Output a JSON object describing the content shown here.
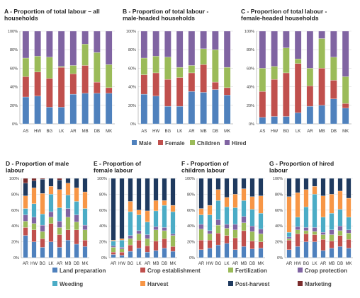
{
  "top_legend": [
    {
      "label": "Male",
      "color": "#4f81bd"
    },
    {
      "label": "Female",
      "color": "#c0504d"
    },
    {
      "label": "Children",
      "color": "#9bbb59"
    },
    {
      "label": "Hired",
      "color": "#8064a2"
    }
  ],
  "bottom_legend": [
    {
      "label": "Land preparation",
      "color": "#4f81bd"
    },
    {
      "label": "Crop establishment",
      "color": "#c0504d"
    },
    {
      "label": "Fertilization",
      "color": "#9bbb59"
    },
    {
      "label": "Crop protection",
      "color": "#8064a2"
    },
    {
      "label": "Weeding",
      "color": "#4bacc6"
    },
    {
      "label": "Harvest",
      "color": "#f79646"
    },
    {
      "label": "Post-harvest",
      "color": "#1f3a5f"
    },
    {
      "label": "Marketing",
      "color": "#7b2c2c"
    }
  ],
  "chart_data": [
    {
      "id": "A",
      "type": "bar",
      "stacked": true,
      "title_lines": [
        "A - Proportion of total labour – all",
        "households"
      ],
      "categories": [
        "AS",
        "HW",
        "BG",
        "LK",
        "AR",
        "MB",
        "DB",
        "MK"
      ],
      "ylim": [
        0,
        100
      ],
      "ytick_suffix": "%",
      "series": [
        {
          "name": "Male",
          "color": "#4f81bd",
          "values": [
            29,
            30,
            18,
            18,
            32,
            33,
            33,
            33
          ]
        },
        {
          "name": "Female",
          "color": "#c0504d",
          "values": [
            22,
            26,
            31,
            43,
            22,
            30,
            12,
            6
          ]
        },
        {
          "name": "Children",
          "color": "#9bbb59",
          "values": [
            20,
            17,
            23,
            1,
            9,
            23,
            32,
            25
          ]
        },
        {
          "name": "Hired",
          "color": "#8064a2",
          "values": [
            29,
            27,
            28,
            38,
            37,
            14,
            23,
            36
          ]
        }
      ]
    },
    {
      "id": "B",
      "type": "bar",
      "stacked": true,
      "title_lines": [
        "B - Proportion of total labour -",
        "male-headed households"
      ],
      "categories": [
        "AS",
        "HW",
        "BG",
        "LK",
        "AR",
        "MB",
        "DB",
        "MK"
      ],
      "ylim": [
        0,
        100
      ],
      "ytick_suffix": "%",
      "series": [
        {
          "name": "Male",
          "color": "#4f81bd",
          "values": [
            32,
            30,
            19,
            19,
            35,
            34,
            37,
            31
          ]
        },
        {
          "name": "Female",
          "color": "#c0504d",
          "values": [
            21,
            25,
            29,
            31,
            20,
            30,
            8,
            8
          ]
        },
        {
          "name": "Children",
          "color": "#9bbb59",
          "values": [
            18,
            18,
            24,
            11,
            8,
            17,
            35,
            22
          ]
        },
        {
          "name": "Hired",
          "color": "#8064a2",
          "values": [
            29,
            27,
            28,
            39,
            37,
            19,
            20,
            39
          ]
        }
      ]
    },
    {
      "id": "C",
      "type": "bar",
      "stacked": true,
      "title_lines": [
        "C - Proportion of total labour -",
        "female-headed households"
      ],
      "categories": [
        "AS",
        "HW",
        "BG",
        "LK",
        "AR",
        "MB",
        "DB",
        "MK"
      ],
      "ylim": [
        0,
        100
      ],
      "ytick_suffix": "%",
      "series": [
        {
          "name": "Male",
          "color": "#4f81bd",
          "values": [
            7,
            8,
            8,
            12,
            19,
            20,
            27,
            17
          ]
        },
        {
          "name": "Female",
          "color": "#c0504d",
          "values": [
            28,
            40,
            47,
            53,
            22,
            40,
            20,
            5
          ]
        },
        {
          "name": "Children",
          "color": "#9bbb59",
          "values": [
            25,
            14,
            27,
            5,
            19,
            32,
            25,
            29
          ]
        },
        {
          "name": "Hired",
          "color": "#8064a2",
          "values": [
            40,
            38,
            18,
            30,
            40,
            8,
            28,
            49
          ]
        }
      ]
    },
    {
      "id": "D",
      "type": "bar",
      "stacked": true,
      "title_lines": [
        "D - Proportion of male",
        "labour"
      ],
      "categories": [
        "AR",
        "HW",
        "BG",
        "LK",
        "AR",
        "MB",
        "DB",
        "MK"
      ],
      "ylim": [
        0,
        100
      ],
      "ytick_suffix": "%",
      "series": [
        {
          "name": "Land preparation",
          "color": "#4f81bd",
          "values": [
            28,
            20,
            13,
            20,
            13,
            22,
            17,
            14
          ]
        },
        {
          "name": "Crop establishment",
          "color": "#c0504d",
          "values": [
            10,
            15,
            11,
            23,
            16,
            13,
            18,
            8
          ]
        },
        {
          "name": "Fertilization",
          "color": "#9bbb59",
          "values": [
            8,
            8,
            9,
            8,
            9,
            16,
            10,
            13
          ]
        },
        {
          "name": "Crop protection",
          "color": "#8064a2",
          "values": [
            8,
            8,
            8,
            7,
            8,
            11,
            9,
            6
          ]
        },
        {
          "name": "Weeding",
          "color": "#4bacc6",
          "values": [
            8,
            17,
            14,
            22,
            17,
            17,
            17,
            21
          ]
        },
        {
          "name": "Harvest",
          "color": "#f79646",
          "values": [
            16,
            20,
            26,
            10,
            23,
            15,
            17,
            21
          ]
        },
        {
          "name": "Post-harvest",
          "color": "#1f3a5f",
          "values": [
            16,
            9,
            18,
            10,
            12,
            6,
            12,
            17
          ]
        },
        {
          "name": "Marketing",
          "color": "#7b2c2c",
          "values": [
            6,
            3,
            1,
            0,
            2,
            0,
            0,
            0
          ]
        }
      ]
    },
    {
      "id": "E",
      "type": "bar",
      "stacked": true,
      "title_lines": [
        "E - Proportion of",
        "female labour"
      ],
      "categories": [
        "AR",
        "HW",
        "BG",
        "LK",
        "AR",
        "MB",
        "DB",
        "MK"
      ],
      "ylim": [
        0,
        100
      ],
      "ytick_suffix": "%",
      "series": [
        {
          "name": "Land preparation",
          "color": "#4f81bd",
          "values": [
            4,
            3,
            8,
            12,
            7,
            9,
            12,
            8
          ]
        },
        {
          "name": "Crop establishment",
          "color": "#c0504d",
          "values": [
            3,
            4,
            8,
            10,
            8,
            12,
            12,
            6
          ]
        },
        {
          "name": "Fertilization",
          "color": "#9bbb59",
          "values": [
            6,
            4,
            8,
            8,
            9,
            14,
            10,
            14
          ]
        },
        {
          "name": "Crop protection",
          "color": "#8064a2",
          "values": [
            2,
            2,
            4,
            4,
            5,
            4,
            4,
            2
          ]
        },
        {
          "name": "Weeding",
          "color": "#4bacc6",
          "values": [
            6,
            9,
            30,
            20,
            16,
            20,
            28,
            28
          ]
        },
        {
          "name": "Harvest",
          "color": "#f79646",
          "values": [
            1,
            2,
            13,
            6,
            14,
            13,
            6,
            8
          ]
        },
        {
          "name": "Post-harvest",
          "color": "#1f3a5f",
          "values": [
            78,
            76,
            29,
            40,
            41,
            28,
            28,
            34
          ]
        },
        {
          "name": "Marketing",
          "color": "#7b2c2c",
          "values": [
            0,
            0,
            0,
            0,
            0,
            0,
            0,
            0
          ]
        }
      ]
    },
    {
      "id": "F",
      "type": "bar",
      "stacked": true,
      "title_lines": [
        "F - Proportion of",
        "children labour"
      ],
      "categories": [
        "AR",
        "HW",
        "BG",
        "LK",
        "AR",
        "MB",
        "DB",
        "MK"
      ],
      "ylim": [
        0,
        100
      ],
      "ytick_suffix": "%",
      "series": [
        {
          "name": "Land preparation",
          "color": "#4f81bd",
          "values": [
            10,
            12,
            16,
            18,
            10,
            14,
            11,
            12
          ]
        },
        {
          "name": "Crop establishment",
          "color": "#c0504d",
          "values": [
            12,
            10,
            15,
            10,
            15,
            20,
            10,
            8
          ]
        },
        {
          "name": "Fertilization",
          "color": "#9bbb59",
          "values": [
            14,
            8,
            10,
            9,
            10,
            10,
            12,
            10
          ]
        },
        {
          "name": "Crop protection",
          "color": "#8064a2",
          "values": [
            6,
            4,
            7,
            5,
            7,
            8,
            7,
            6
          ]
        },
        {
          "name": "Weeding",
          "color": "#4bacc6",
          "values": [
            12,
            20,
            24,
            22,
            21,
            20,
            21,
            20
          ]
        },
        {
          "name": "Harvest",
          "color": "#f79646",
          "values": [
            8,
            12,
            14,
            12,
            17,
            15,
            16,
            22
          ]
        },
        {
          "name": "Post-harvest",
          "color": "#1f3a5f",
          "values": [
            38,
            34,
            14,
            24,
            20,
            13,
            23,
            22
          ]
        },
        {
          "name": "Marketing",
          "color": "#7b2c2c",
          "values": [
            0,
            0,
            0,
            0,
            0,
            0,
            0,
            0
          ]
        }
      ]
    },
    {
      "id": "G",
      "type": "bar",
      "stacked": true,
      "title_lines": [
        "G - Proportion of hired",
        "labour"
      ],
      "categories": [
        "AR",
        "HW",
        "BG",
        "LK",
        "AR",
        "MB",
        "DB",
        "MK"
      ],
      "ylim": [
        0,
        100
      ],
      "ytick_suffix": "%",
      "series": [
        {
          "name": "Land preparation",
          "color": "#4f81bd",
          "values": [
            10,
            14,
            20,
            20,
            9,
            12,
            14,
            12
          ]
        },
        {
          "name": "Crop establishment",
          "color": "#c0504d",
          "values": [
            12,
            16,
            10,
            9,
            14,
            9,
            14,
            11
          ]
        },
        {
          "name": "Fertilization",
          "color": "#9bbb59",
          "values": [
            2,
            5,
            4,
            4,
            6,
            8,
            6,
            8
          ]
        },
        {
          "name": "Crop protection",
          "color": "#8064a2",
          "values": [
            2,
            4,
            4,
            5,
            3,
            6,
            6,
            4
          ]
        },
        {
          "name": "Weeding",
          "color": "#4bacc6",
          "values": [
            6,
            12,
            26,
            42,
            19,
            21,
            21,
            16
          ]
        },
        {
          "name": "Harvest",
          "color": "#f79646",
          "values": [
            45,
            31,
            22,
            10,
            27,
            24,
            23,
            24
          ]
        },
        {
          "name": "Post-harvest",
          "color": "#1f3a5f",
          "values": [
            23,
            18,
            14,
            10,
            22,
            20,
            16,
            25
          ]
        },
        {
          "name": "Marketing",
          "color": "#7b2c2c",
          "values": [
            0,
            0,
            0,
            0,
            0,
            0,
            0,
            0
          ]
        }
      ]
    }
  ]
}
